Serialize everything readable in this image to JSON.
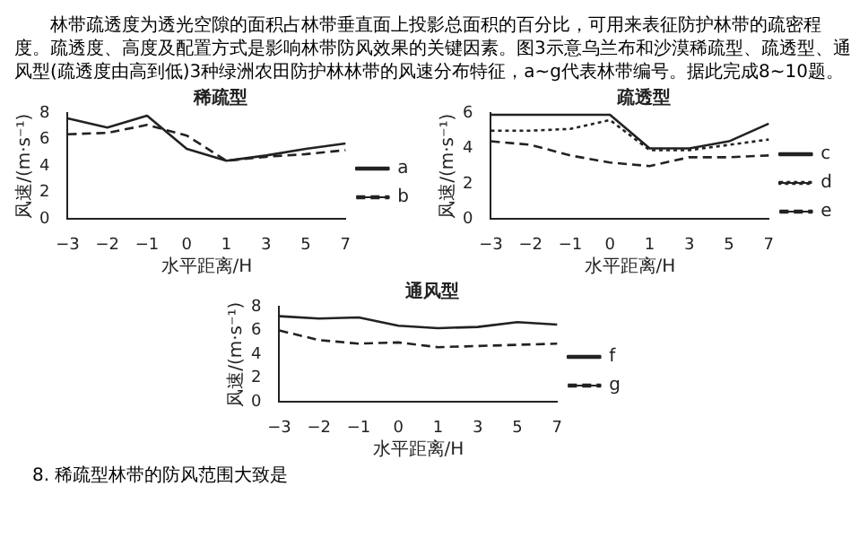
{
  "chart_data": [
    {
      "type": "other",
      "annotations": [
        "林带疏透度为透光空隙的面积占林带垂直面上投影总面积的百分比，可用来表征防护林带的疏密程度。疏透度、高度及配置方式是影响林带防风效果的关键因素。图3示意乌兰布和沙漠稀疏型、疏透型、通风型(疏透度由高到低)3种绿洲农田防护林林带的风速分布特征，a~g代表林带编号。据此完成8~10题。"
      ]
    },
    {
      "type": "line",
      "title": "稀疏型",
      "xlabel": "水平距离/H",
      "ylabel": "风速/(m·s⁻¹)",
      "categories": [
        "−3",
        "−2",
        "−1",
        "0",
        "1",
        "3",
        "5",
        "7"
      ],
      "ylim": [
        0,
        8
      ],
      "yticks": [
        0,
        2,
        4,
        6,
        8
      ],
      "grid": false,
      "legend": "right",
      "marker": "none",
      "series": [
        {
          "name": "a",
          "color": "#222222",
          "line_style": "solid",
          "values": [
            7.6,
            6.9,
            7.8,
            5.3,
            4.4,
            4.8,
            5.3,
            5.7
          ]
        },
        {
          "name": "b",
          "color": "#222222",
          "line_style": "dashed",
          "values": [
            6.4,
            6.5,
            7.1,
            6.3,
            4.4,
            4.7,
            4.9,
            5.2
          ]
        }
      ]
    },
    {
      "type": "line",
      "title": "疏透型",
      "xlabel": "水平距离/H",
      "ylabel": "风速/(m·s⁻¹)",
      "categories": [
        "−3",
        "−2",
        "−1",
        "0",
        "1",
        "3",
        "5",
        "7"
      ],
      "ylim": [
        0,
        6
      ],
      "yticks": [
        0,
        2,
        4,
        6
      ],
      "grid": false,
      "legend": "right",
      "marker": "none",
      "series": [
        {
          "name": "c",
          "color": "#222222",
          "line_style": "solid",
          "values": [
            5.9,
            5.9,
            5.9,
            5.9,
            4.0,
            4.0,
            4.4,
            5.4
          ]
        },
        {
          "name": "d",
          "color": "#222222",
          "line_style": "dotted",
          "values": [
            5.0,
            5.0,
            5.1,
            5.6,
            3.9,
            3.9,
            4.2,
            4.5
          ]
        },
        {
          "name": "e",
          "color": "#222222",
          "line_style": "dashed",
          "values": [
            4.4,
            4.2,
            3.6,
            3.2,
            3.0,
            3.5,
            3.5,
            3.6
          ]
        }
      ]
    },
    {
      "type": "line",
      "title": "通风型",
      "xlabel": "水平距离/H",
      "ylabel": "风速/(m·s⁻¹)",
      "categories": [
        "−3",
        "−2",
        "−1",
        "0",
        "1",
        "3",
        "5",
        "7"
      ],
      "ylim": [
        0,
        8
      ],
      "yticks": [
        0,
        2,
        4,
        6,
        8
      ],
      "grid": false,
      "legend": "right",
      "marker": "none",
      "series": [
        {
          "name": "f",
          "color": "#222222",
          "line_style": "solid",
          "values": [
            7.2,
            7.0,
            7.1,
            6.4,
            6.2,
            6.3,
            6.7,
            6.5
          ]
        },
        {
          "name": "g",
          "color": "#222222",
          "line_style": "dashed",
          "values": [
            6.0,
            5.2,
            4.9,
            5.0,
            4.6,
            4.7,
            4.8,
            4.9
          ]
        }
      ]
    },
    {
      "type": "other",
      "annotations": [
        "8. 稀疏型林带的防风范围大致是"
      ]
    }
  ]
}
